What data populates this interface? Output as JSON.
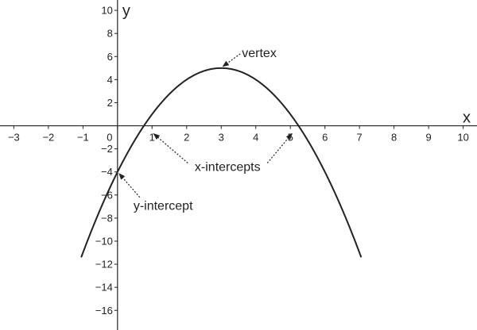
{
  "chart_data": {
    "type": "line",
    "xlabel": "x",
    "ylabel": "y",
    "xlim": [
      -3.4,
      10.4
    ],
    "ylim": [
      -17.7,
      10.9
    ],
    "grid": false,
    "x_ticks": [
      -3,
      -2,
      -1,
      0,
      1,
      2,
      3,
      4,
      5,
      6,
      7,
      8,
      9,
      10
    ],
    "y_ticks": [
      10,
      8,
      6,
      4,
      2,
      -2,
      -4,
      -6,
      -8,
      -10,
      -12,
      -14,
      -16
    ],
    "x_tick_labels": [
      "−3",
      "−2",
      "−1",
      "0",
      "1",
      "2",
      "3",
      "4",
      "5",
      "6",
      "7",
      "8",
      "9",
      "10"
    ],
    "y_tick_labels": [
      "10",
      "8",
      "6",
      "4",
      "2",
      "−2",
      "−4",
      "−6",
      "−8",
      "−10",
      "−12",
      "−14",
      "−16"
    ],
    "series": [
      {
        "function": "y = -x^2 + 6x - 4",
        "color": "#222222",
        "x": [
          -1.0,
          -0.5,
          0,
          0.5,
          1,
          1.5,
          2,
          2.5,
          3,
          3.5,
          4,
          4.5,
          5,
          5.5,
          6,
          6.5,
          7
        ],
        "y": [
          -11.0,
          -7.25,
          -4.0,
          -1.25,
          1.0,
          2.75,
          4.0,
          4.75,
          5.0,
          4.75,
          4.0,
          2.75,
          1.0,
          -1.25,
          -4.0,
          -7.25,
          -11.0
        ]
      }
    ],
    "key_points": {
      "vertex": [
        3,
        5
      ],
      "y_intercept": [
        0,
        -4
      ],
      "x_intercepts": [
        [
          0.76,
          0
        ],
        [
          5.24,
          0
        ]
      ]
    },
    "annotations": [
      {
        "text": "vertex",
        "points_to": "vertex"
      },
      {
        "text": "x-intercepts",
        "points_to": "x_intercepts"
      },
      {
        "text": "y-intercept",
        "points_to": "y_intercept"
      }
    ]
  }
}
